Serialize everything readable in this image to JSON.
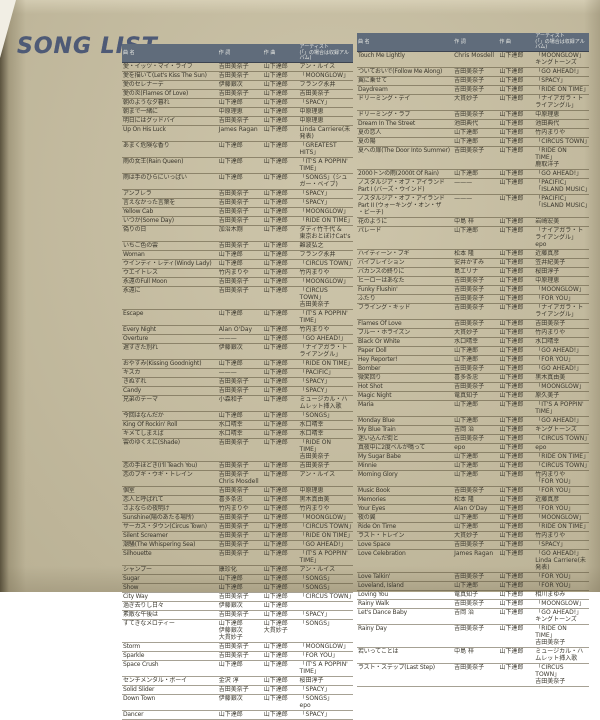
{
  "page_title": "SONG LIST",
  "colors": {
    "paper": "#c8bfa2",
    "header_bar": "#606c7b",
    "title_ink": "#4e5a76",
    "text_ink": "#3b382e"
  },
  "left_table": {
    "headers": [
      "曲 名",
      "作 詞",
      "作 曲",
      "アーティスト\n(「」の場合は収録アルバム)"
    ],
    "rows": [
      [
        "愛・イッツ・マイ・ライフ",
        "吉田美奈子",
        "山下達郎",
        "アン・ルイス"
      ],
      [
        "愛を描いて(Let's Kiss The Sun)",
        "吉田美奈子",
        "山下達郎",
        "「MOONGLOW」"
      ],
      [
        "愛のセレナーデ",
        "伊藤銀次",
        "山下達郎",
        "フランク永井"
      ],
      [
        "愛の炎(Flames Of Love)",
        "吉田美奈子",
        "山下達郎",
        "吉田美奈子"
      ],
      [
        "朝のような夕暮れ",
        "山下達郎",
        "山下達郎",
        "「SPACY」"
      ],
      [
        "朝まで一緒に",
        "中原理恵",
        "山下達郎",
        "中原理恵"
      ],
      [
        "明日にはグッドバイ",
        "吉田美奈子",
        "山下達郎",
        "中原理恵"
      ],
      [
        "Up On His Luck",
        "James Ragan",
        "山下達郎",
        "Linda Carriere(未発表)"
      ],
      [
        "あまく危険な香り",
        "山下達郎",
        "山下達郎",
        "「GREATEST HITS」"
      ],
      [
        "雨の女王(Rain Queen)",
        "山下達郎",
        "山下達郎",
        "「IT'S A POPPIN' TIME」"
      ],
      [
        "雨は手のひらにいっぱい",
        "山下達郎",
        "山下達郎",
        "「SONGS」(シュガー・ベイブ)"
      ],
      [
        "アンブレラ",
        "吉田美奈子",
        "山下達郎",
        "「SPACY」"
      ],
      [
        "言えなかった言葉を",
        "吉田美奈子",
        "山下達郎",
        "「SPACY」"
      ],
      [
        "Yellow Cab",
        "吉田美奈子",
        "山下達郎",
        "「MOONGLOW」"
      ],
      [
        "いつか(Some Day)",
        "吉田美奈子",
        "山下達郎",
        "「RIDE ON TIME」"
      ],
      [
        "偽りの日",
        "加治木剛",
        "山下達郎",
        "ダディ竹千代 &\n東京おとぼけCat's"
      ],
      [
        "いちご色の雲",
        "吉田美奈子",
        "山下達郎",
        "難波弘之"
      ],
      [
        "Woman",
        "山下達郎",
        "山下達郎",
        "フランク永井"
      ],
      [
        "ウインディ・レディ(Windy Lady)",
        "山下達郎",
        "山下達郎",
        "「CIRCUS TOWN」"
      ],
      [
        "ウエイトレス",
        "竹内まりや",
        "山下達郎",
        "竹内まりや"
      ],
      [
        "永遠のFull Moon",
        "吉田美奈子",
        "山下達郎",
        "「MOONGLOW」"
      ],
      [
        "永遠に",
        "吉田美奈子",
        "山下達郎",
        "「CIRCUS TOWN」\n吉田美奈子"
      ],
      [
        "Escape",
        "山下達郎",
        "山下達郎",
        "「IT'S A POPPIN' TIME」"
      ],
      [
        "Every Night",
        "Alan O'Day",
        "山下達郎",
        "竹内まりや"
      ],
      [
        "Overture",
        "———",
        "山下達郎",
        "「GO AHEAD!」"
      ],
      [
        "遅すぎた別れ",
        "伊藤銀次",
        "山下達郎",
        "「ナイアガラ・トライアングル」"
      ],
      [
        "おやすみ(Kissing Goodnight)",
        "山下達郎",
        "山下達郎",
        "「RIDE ON TIME」"
      ],
      [
        "キスカ",
        "———",
        "山下達郎",
        "「PACIFIC」"
      ],
      [
        "きぬずれ",
        "吉田美奈子",
        "山下達郎",
        "「SPACY」"
      ],
      [
        "Candy",
        "吉田美奈子",
        "山下達郎",
        "「SPACY」"
      ],
      [
        "兄弟のテーマ",
        "小森和子",
        "山下達郎",
        "ミュージカル・ハムレット挿入歌"
      ],
      [
        "今回はなんだか",
        "山下達郎",
        "山下達郎",
        "「SONGS」"
      ],
      [
        "King Of Rockin' Roll",
        "水口晴幸",
        "山下達郎",
        "水口晴幸"
      ],
      [
        "キメてしまえば",
        "水口晴幸",
        "山下達郎",
        "水口晴幸"
      ],
      [
        "雲のゆくえに(Shade)",
        "吉田美奈子",
        "山下達郎",
        "「RIDE ON TIME」\n吉田美奈子"
      ],
      [
        "恋の手ほどき(I'll Teach You)",
        "吉田美奈子",
        "山下達郎",
        "吉田美奈子"
      ],
      [
        "恋のブギ・ウギ・トレイン",
        "吉田美奈子\nChris Mosdell",
        "山下達郎",
        "アン・ルイス"
      ],
      [
        "個室",
        "吉田美奈子",
        "山下達郎",
        "中原理恵"
      ],
      [
        "恋人と呼ばれて",
        "喜多条忠",
        "山下達郎",
        "黒木真由美"
      ],
      [
        "さよならの夜明け",
        "竹内まりや",
        "山下達郎",
        "竹内まりや"
      ],
      [
        "Sunshine(陽のあたる場所)",
        "吉田美奈子",
        "山下達郎",
        "「MOONGLOW」"
      ],
      [
        "サーカス・タウン(Circus Town)",
        "吉田美奈子",
        "山下達郎",
        "「CIRCUS TOWN」"
      ],
      [
        "Silent Screamer",
        "吉田美奈子",
        "山下達郎",
        "「RIDE ON TIME」"
      ],
      [
        "潮騒(The Whispering Sea)",
        "吉田美奈子",
        "山下達郎",
        "「GO AHEAD!」"
      ],
      [
        "Silhouette",
        "吉田美奈子",
        "山下達郎",
        "「IT'S A POPPIN' TIME」"
      ],
      [
        "シャンプー",
        "康珍化",
        "山下達郎",
        "アン・ルイス"
      ],
      [
        "Sugar",
        "山下達郎",
        "山下達郎",
        "「SONGS」"
      ],
      [
        "Show",
        "山下達郎",
        "山下達郎",
        "「SONGS」"
      ],
      [
        "City Way",
        "吉田美奈子",
        "山下達郎",
        "「CIRCUS TOWN」"
      ],
      [
        "過ぎ去りし日々",
        "伊藤銀次",
        "山下達郎",
        ""
      ],
      [
        "素敵な午後は",
        "吉田美奈子",
        "山下達郎",
        "「SPACY」"
      ],
      [
        "すてきなメロディー",
        "山下達郎\n伊藤銀次\n大貫妙子",
        "山下達郎\n大貫妙子",
        "「SONGS」"
      ],
      [
        "Storm",
        "吉田美奈子",
        "山下達郎",
        "「MOONGLOW」"
      ],
      [
        "Sparkle",
        "吉田美奈子",
        "山下達郎",
        "「FOR YOU」"
      ],
      [
        "Space Crush",
        "山下達郎",
        "山下達郎",
        "「IT'S A POPPIN' TIME」"
      ],
      [
        "センチメンタル・ボーイ",
        "金沢 淳",
        "山下達郎",
        "桜田淳子"
      ],
      [
        "Solid Slider",
        "吉田美奈子",
        "山下達郎",
        "「SPACY」"
      ],
      [
        "Down Town",
        "伊藤銀次",
        "山下達郎",
        "「SONGS」\nepo"
      ],
      [
        "Dancer",
        "山下達郎",
        "山下達郎",
        "「SPACY」"
      ]
    ]
  },
  "right_table": {
    "headers": [
      "曲 名",
      "作 詞",
      "作 曲",
      "アーティスト\n(「」の場合は収録アルバム)"
    ],
    "rows": [
      [
        "Touch Me Lightly",
        "Chris Mosdell",
        "山下達郎",
        "「MOONGLOW」\nキングトーンズ"
      ],
      [
        "ついておいで(Follow Me Along)",
        "吉田美奈子",
        "山下達郎",
        "「GO AHEAD!」"
      ],
      [
        "翼に乗せて",
        "吉田美奈子",
        "山下達郎",
        "「SPACY」"
      ],
      [
        "Daydream",
        "吉田美奈子",
        "山下達郎",
        "「RIDE ON TIME」"
      ],
      [
        "ドリーミング・デイ",
        "大貫妙子",
        "山下達郎",
        "「ナイアガラ・トライアングル」"
      ],
      [
        "ドリーミング・ラブ",
        "吉田美奈子",
        "山下達郎",
        "中原理恵"
      ],
      [
        "Dream In The Street",
        "池田典代",
        "山下達郎",
        "池田典代"
      ],
      [
        "夏の恋人",
        "山下達郎",
        "山下達郎",
        "竹内まりや"
      ],
      [
        "夏の陽",
        "山下達郎",
        "山下達郎",
        "「CIRCUS TOWN」"
      ],
      [
        "夏への扉(The Door Into Summer)",
        "吉田美奈子",
        "山下達郎",
        "「RIDE ON TIME」\n鹿取洋子"
      ],
      [
        "2000トンの雨(2000t Of Rain)",
        "山下達郎",
        "山下達郎",
        "「GO AHEAD!」"
      ],
      [
        "ノスタルジア・オブ・アイランド\nPart I (バーズ・ウインド)",
        "———",
        "山下達郎",
        "「PACIFIC」\n「ISLAND MUSIC」"
      ],
      [
        "ノスタルジア・オブ・アイランド\nPart II (ウォーキング・オン・ザ\n・ビーチ)",
        "———",
        "山下達郎",
        "「PACIFIC」\n「ISLAND MUSIC」"
      ],
      [
        "花のように",
        "中島 梓",
        "山下達郎",
        "岩崎宏美"
      ],
      [
        "パレード",
        "山下達郎",
        "山下達郎",
        "「ナイアガラ・トライアングル」\nepo"
      ],
      [
        "ハイティーン・ブギ",
        "松本 隆",
        "山下達郎",
        "近藤真彦"
      ],
      [
        "バイブレイション",
        "安井かずみ",
        "山下達郎",
        "笠井紀美子"
      ],
      [
        "バカンスの終りに",
        "島エリナ",
        "山下達郎",
        "桜田淳子"
      ],
      [
        "ヒーローはあなた",
        "吉田美奈子",
        "山下達郎",
        "中原理恵"
      ],
      [
        "Funky Flushin'",
        "吉田美奈子",
        "山下達郎",
        "「MOONGLOW」"
      ],
      [
        "ふたり",
        "吉田美奈子",
        "山下達郎",
        "「FOR YOU」"
      ],
      [
        "フライング・キッド",
        "吉田美奈子",
        "山下達郎",
        "「ナイアガラ・トライアングル」"
      ],
      [
        "Flames Of Love",
        "吉田美奈子",
        "山下達郎",
        "吉田美奈子"
      ],
      [
        "ブルー・ホライズン",
        "大貫妙子",
        "山下達郎",
        "竹内まりや"
      ],
      [
        "Black Or White",
        "水口晴幸",
        "山下達郎",
        "水口晴幸"
      ],
      [
        "Paper Doll",
        "山下達郎",
        "山下達郎",
        "「GO AHEAD!」"
      ],
      [
        "Hey Reporter!",
        "山下達郎",
        "山下達郎",
        "「FOR YOU」"
      ],
      [
        "Bomber",
        "吉田美奈子",
        "山下達郎",
        "「GO AHEAD!」"
      ],
      [
        "微笑回り",
        "喜多条忠",
        "山下達郎",
        "黒木真由美"
      ],
      [
        "Hot Shot",
        "吉田美奈子",
        "山下達郎",
        "「MOONGLOW」"
      ],
      [
        "Magic Night",
        "竜真知子",
        "山下達郎",
        "原久美子"
      ],
      [
        "Maria",
        "山下達郎",
        "山下達郎",
        "「IT'S A POPPIN' TIME」"
      ],
      [
        "Monday Blue",
        "山下達郎",
        "山下達郎",
        "「GO AHEAD!」"
      ],
      [
        "My Blue Train",
        "吉岡 治",
        "山下達郎",
        "キングトーンズ"
      ],
      [
        "迷い込んだ街と",
        "吉田美奈子",
        "山下達郎",
        "「CIRCUS TOWN」"
      ],
      [
        "真夜中に2度ベルが鳴って",
        "epo",
        "山下達郎",
        "epo"
      ],
      [
        "My Sugar Babe",
        "山下達郎",
        "山下達郎",
        "「RIDE ON TIME」"
      ],
      [
        "Minnie",
        "山下達郎",
        "山下達郎",
        "「CIRCUS TOWN」"
      ],
      [
        "Morning Glory",
        "山下達郎",
        "山下達郎",
        "竹内まりや\n「FOR YOU」"
      ],
      [
        "Music Book",
        "吉田美奈子",
        "山下達郎",
        "「FOR YOU」"
      ],
      [
        "Memories",
        "松本 隆",
        "山下達郎",
        "近藤真彦"
      ],
      [
        "Your Eyes",
        "Alan O'Day",
        "山下達郎",
        "「FOR YOU」"
      ],
      [
        "夜の翼",
        "山下達郎",
        "山下達郎",
        "「MOONGLOW」"
      ],
      [
        "Ride On Time",
        "山下達郎",
        "山下達郎",
        "「RIDE ON TIME」"
      ],
      [
        "ラスト・トレイン",
        "大貫妙子",
        "山下達郎",
        "竹内まりや"
      ],
      [
        "Love Space",
        "吉田美奈子",
        "山下達郎",
        "「SPACY」"
      ],
      [
        "Love Celebration",
        "James Ragan",
        "山下達郎",
        "「GO AHEAD!」\nLinda Carriere(未発表)"
      ],
      [
        "Love Talkin'",
        "吉田美奈子",
        "山下達郎",
        "「FOR YOU」"
      ],
      [
        "Loveland, Island",
        "山下達郎",
        "山下達郎",
        "「FOR YOU」"
      ],
      [
        "Loving You",
        "竜真知子",
        "山下達郎",
        "相川まゆみ"
      ],
      [
        "Rainy Walk",
        "吉田美奈子",
        "山下達郎",
        "「MOONGLOW」"
      ],
      [
        "Let's Dance Baby",
        "吉岡 治",
        "山下達郎",
        "「GO AHEAD!」\nキングトーンズ"
      ],
      [
        "Rainy Day",
        "吉田美奈子",
        "山下達郎",
        "「RIDE ON TIME」\n吉田美奈子"
      ],
      [
        "若いってことは",
        "中島 梓",
        "山下達郎",
        "ミュージカル・ハムレット挿入歌"
      ],
      [
        "ラスト・ステップ(Last Step)",
        "吉田美奈子",
        "山下達郎",
        "「CIRCUS TOWN」\n吉田美奈子"
      ]
    ]
  }
}
